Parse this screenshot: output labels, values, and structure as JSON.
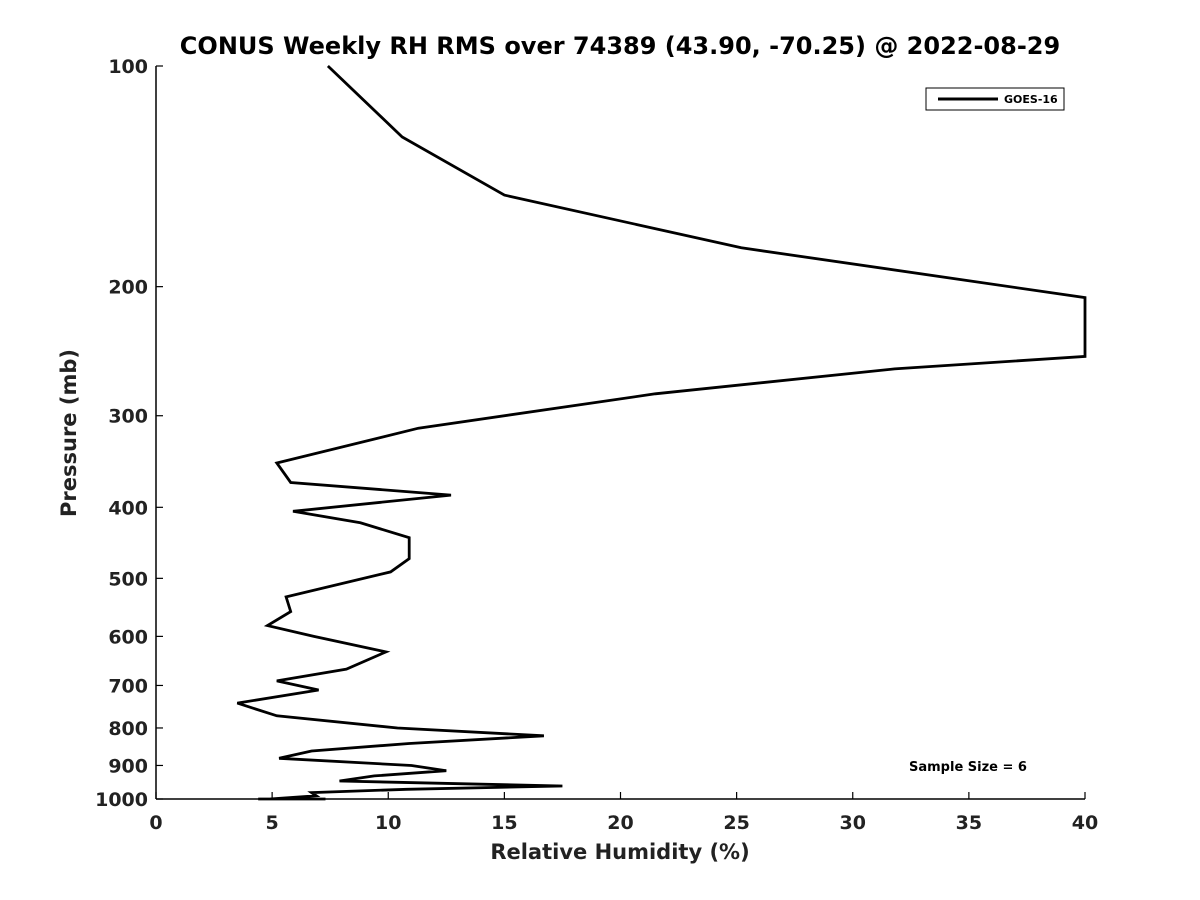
{
  "chart_data": {
    "type": "line",
    "title": "CONUS Weekly RH RMS over 74389 (43.90, -70.25) @ 2022-08-29",
    "xlabel": "Relative Humidity (%)",
    "ylabel": "Pressure (mb)",
    "xlim": [
      0,
      40
    ],
    "ylim": [
      100,
      1000
    ],
    "y_scale": "log",
    "y_reversed": true,
    "x_ticks": [
      0,
      5,
      10,
      15,
      20,
      25,
      30,
      35,
      40
    ],
    "y_ticks": [
      100,
      200,
      300,
      400,
      500,
      600,
      700,
      800,
      900,
      1000
    ],
    "grid": false,
    "legend_position": "top-right",
    "series": [
      {
        "name": "GOES-16",
        "color": "#000000",
        "points": [
          [
            7.4,
            100
          ],
          [
            10.6,
            125
          ],
          [
            15.0,
            150
          ],
          [
            25.2,
            177
          ],
          [
            40.0,
            207
          ],
          [
            40.0,
            249
          ],
          [
            31.8,
            259
          ],
          [
            21.5,
            280
          ],
          [
            11.3,
            312
          ],
          [
            5.2,
            348
          ],
          [
            5.8,
            370
          ],
          [
            12.7,
            385
          ],
          [
            5.9,
            405
          ],
          [
            8.8,
            420
          ],
          [
            10.9,
            440
          ],
          [
            10.9,
            470
          ],
          [
            10.1,
            490
          ],
          [
            5.6,
            530
          ],
          [
            5.8,
            555
          ],
          [
            4.8,
            580
          ],
          [
            6.8,
            600
          ],
          [
            9.9,
            630
          ],
          [
            8.2,
            665
          ],
          [
            5.2,
            690
          ],
          [
            7.0,
            710
          ],
          [
            3.5,
            740
          ],
          [
            5.2,
            770
          ],
          [
            10.4,
            800
          ],
          [
            16.7,
            820
          ],
          [
            10.9,
            840
          ],
          [
            6.7,
            860
          ],
          [
            5.3,
            880
          ],
          [
            11.0,
            900
          ],
          [
            12.5,
            915
          ],
          [
            9.4,
            930
          ],
          [
            7.9,
            945
          ],
          [
            17.5,
            960
          ],
          [
            10.8,
            970
          ],
          [
            6.7,
            980
          ],
          [
            6.9,
            990
          ],
          [
            4.9,
            1000
          ],
          [
            5.7,
            1010
          ],
          [
            7.3,
            1020
          ],
          [
            7.2,
            1030
          ],
          [
            4.4,
            1040
          ],
          [
            5.9,
            1050
          ]
        ]
      }
    ],
    "annotations": [
      "Sample Size = 6"
    ]
  }
}
